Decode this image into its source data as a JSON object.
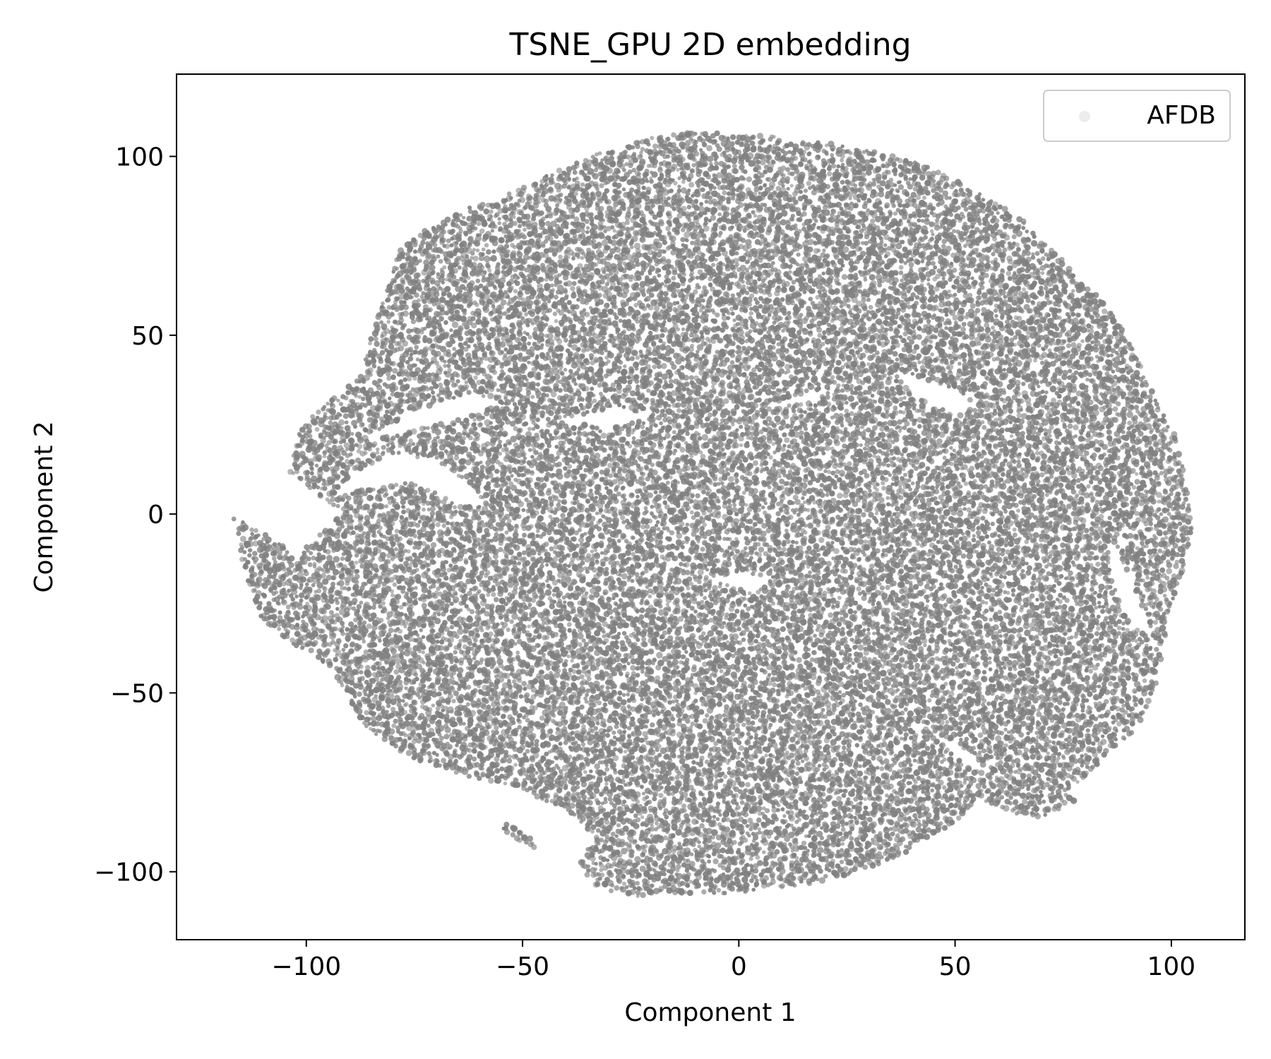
{
  "chart_data": {
    "type": "scatter",
    "title": "TSNE_GPU 2D embedding",
    "xlabel": "Component 1",
    "ylabel": "Component 2",
    "xlim": [
      -130,
      117
    ],
    "ylim": [
      -119,
      123
    ],
    "xticks": [
      -100,
      -50,
      0,
      50,
      100
    ],
    "yticks": [
      -100,
      -50,
      0,
      50,
      100
    ],
    "xtick_labels": [
      "−100",
      "−50",
      "0",
      "50",
      "100"
    ],
    "ytick_labels": [
      "−100",
      "−50",
      "0",
      "50",
      "100"
    ],
    "grid": false,
    "legend": {
      "placement": "top-right",
      "entries": [
        "AFDB"
      ]
    },
    "series": [
      {
        "name": "AFDB",
        "color": "#808080",
        "marker": "dot",
        "alpha": 0.3,
        "point_count_note": "dense cloud, ~hundreds of thousands of points",
        "boundary": [
          [
            -117,
            0
          ],
          [
            -112,
            -4
          ],
          [
            -106,
            -8
          ],
          [
            -103,
            -13
          ],
          [
            -99,
            -8
          ],
          [
            -94,
            -3
          ],
          [
            -92,
            1
          ],
          [
            -99,
            7
          ],
          [
            -104,
            12
          ],
          [
            -101,
            25
          ],
          [
            -94,
            32
          ],
          [
            -88,
            38
          ],
          [
            -85,
            50
          ],
          [
            -82,
            60
          ],
          [
            -79,
            73
          ],
          [
            -72,
            80
          ],
          [
            -64,
            85
          ],
          [
            -54,
            89
          ],
          [
            -44,
            95
          ],
          [
            -32,
            101
          ],
          [
            -18,
            106
          ],
          [
            -4,
            107
          ],
          [
            6,
            106
          ],
          [
            18,
            104
          ],
          [
            32,
            102
          ],
          [
            46,
            96
          ],
          [
            58,
            88
          ],
          [
            66,
            82
          ],
          [
            74,
            72
          ],
          [
            82,
            62
          ],
          [
            88,
            54
          ],
          [
            92,
            44
          ],
          [
            96,
            33
          ],
          [
            101,
            22
          ],
          [
            104,
            6
          ],
          [
            105,
            -4
          ],
          [
            103,
            -14
          ],
          [
            100,
            -25
          ],
          [
            98,
            -38
          ],
          [
            96,
            -50
          ],
          [
            92,
            -60
          ],
          [
            86,
            -66
          ],
          [
            80,
            -74
          ],
          [
            72,
            -80
          ],
          [
            64,
            -84
          ],
          [
            56,
            -80
          ],
          [
            50,
            -86
          ],
          [
            40,
            -94
          ],
          [
            28,
            -100
          ],
          [
            14,
            -104
          ],
          [
            0,
            -106
          ],
          [
            -14,
            -106
          ],
          [
            -24,
            -107
          ],
          [
            -34,
            -104
          ],
          [
            -37,
            -97
          ],
          [
            -33,
            -90
          ],
          [
            -40,
            -83
          ],
          [
            -52,
            -76
          ],
          [
            -64,
            -73
          ],
          [
            -76,
            -68
          ],
          [
            -86,
            -60
          ],
          [
            -90,
            -52
          ],
          [
            -94,
            -44
          ],
          [
            -98,
            -39
          ],
          [
            -104,
            -36
          ],
          [
            -110,
            -30
          ],
          [
            -114,
            -18
          ]
        ],
        "holes": [
          [
            [
              -95,
              4
            ],
            [
              -88,
              12
            ],
            [
              -80,
              17
            ],
            [
              -70,
              15
            ],
            [
              -62,
              8
            ],
            [
              -58,
              2
            ],
            [
              -66,
              4
            ],
            [
              -76,
              9
            ],
            [
              -86,
              7
            ]
          ],
          [
            [
              -88,
              20
            ],
            [
              -75,
              29
            ],
            [
              -62,
              34
            ],
            [
              -55,
              31
            ],
            [
              -64,
              27
            ],
            [
              -76,
              23
            ]
          ],
          [
            [
              -42,
              26
            ],
            [
              -28,
              30
            ],
            [
              -20,
              27
            ],
            [
              -30,
              24
            ]
          ],
          [
            [
              2,
              29
            ],
            [
              14,
              33
            ],
            [
              24,
              36
            ],
            [
              16,
              31
            ]
          ],
          [
            [
              36,
              40
            ],
            [
              48,
              36
            ],
            [
              56,
              30
            ],
            [
              50,
              28
            ],
            [
              40,
              33
            ]
          ],
          [
            [
              64,
              48
            ],
            [
              70,
              38
            ],
            [
              76,
              28
            ],
            [
              72,
              34
            ],
            [
              66,
              44
            ]
          ],
          [
            [
              86,
              -6
            ],
            [
              92,
              -22
            ],
            [
              96,
              -36
            ],
            [
              90,
              -30
            ],
            [
              86,
              -18
            ]
          ],
          [
            [
              -8,
              -18
            ],
            [
              4,
              -22
            ],
            [
              8,
              -18
            ],
            [
              0,
              -16
            ]
          ],
          [
            [
              42,
              -58
            ],
            [
              52,
              -66
            ],
            [
              60,
              -74
            ],
            [
              52,
              -70
            ]
          ]
        ],
        "islands": [
          [
            [
              -55,
              -86
            ],
            [
              -48,
              -90
            ],
            [
              -44,
              -95
            ],
            [
              -50,
              -92
            ],
            [
              -55,
              -89
            ]
          ],
          [
            [
              62,
              -76
            ],
            [
              72,
              -76
            ],
            [
              78,
              -80
            ],
            [
              70,
              -85
            ],
            [
              62,
              -82
            ]
          ]
        ]
      }
    ]
  }
}
